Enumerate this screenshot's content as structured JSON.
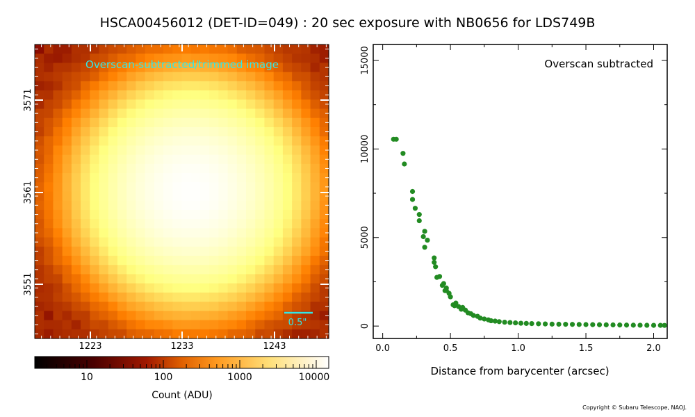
{
  "title": "HSCA00456012 (DET-ID=049) :  20 sec exposure with NB0656 for LDS749B",
  "image_panel": {
    "label": "Overscan-subtracted/trimmed image",
    "label_color": "#33e6e6",
    "x_ticks": [
      "1223",
      "1233",
      "1243"
    ],
    "y_ticks": [
      "3571",
      "3561",
      "3551"
    ],
    "scalebar_label": "0.5\""
  },
  "colorbar": {
    "ticks": [
      "10",
      "100",
      "1000",
      "10000"
    ],
    "label": "Count (ADU)",
    "scale": "log"
  },
  "copyright": "Copyright © Subaru Telescope, NAOJ.",
  "chart_data": {
    "type": "scatter",
    "annotation": "Overscan subtracted",
    "xlabel": "Distance from barycenter (arcsec)",
    "ylabel": "",
    "xlim": [
      -0.07,
      2.1
    ],
    "ylim": [
      -700,
      15900
    ],
    "x_ticks": [
      "0.0",
      "0.5",
      "1.0",
      "1.5",
      "2.0"
    ],
    "y_ticks": [
      "0",
      "5000",
      "10000",
      "15000"
    ],
    "marker_color": "#228b22",
    "series": [
      {
        "x": [
          0.08,
          0.1,
          0.15,
          0.16,
          0.22,
          0.22,
          0.24,
          0.27,
          0.27,
          0.3,
          0.31,
          0.31,
          0.33,
          0.38,
          0.38,
          0.39,
          0.4,
          0.42,
          0.44,
          0.45,
          0.46,
          0.47,
          0.47,
          0.49,
          0.5,
          0.52,
          0.53,
          0.54,
          0.56,
          0.58,
          0.59,
          0.61,
          0.63,
          0.65,
          0.67,
          0.7,
          0.72,
          0.75,
          0.78,
          0.8,
          0.83,
          0.86,
          0.9,
          0.94,
          0.98,
          1.02,
          1.06,
          1.1,
          1.15,
          1.2,
          1.25,
          1.3,
          1.35,
          1.4,
          1.45,
          1.5,
          1.55,
          1.6,
          1.65,
          1.7,
          1.75,
          1.8,
          1.85,
          1.9,
          1.95,
          2.0,
          2.05,
          2.08
        ],
        "y": [
          10550,
          10550,
          9750,
          9150,
          7600,
          7150,
          6650,
          6300,
          5950,
          5050,
          5350,
          4450,
          4850,
          3850,
          3600,
          3350,
          2750,
          2800,
          2300,
          2400,
          2000,
          2150,
          2000,
          1850,
          1650,
          1200,
          1150,
          1300,
          1100,
          950,
          1050,
          900,
          750,
          700,
          600,
          550,
          450,
          400,
          350,
          300,
          280,
          250,
          220,
          200,
          180,
          160,
          150,
          140,
          130,
          120,
          110,
          105,
          100,
          95,
          90,
          85,
          80,
          75,
          70,
          65,
          60,
          55,
          50,
          48,
          45,
          42,
          40,
          38
        ]
      }
    ]
  }
}
